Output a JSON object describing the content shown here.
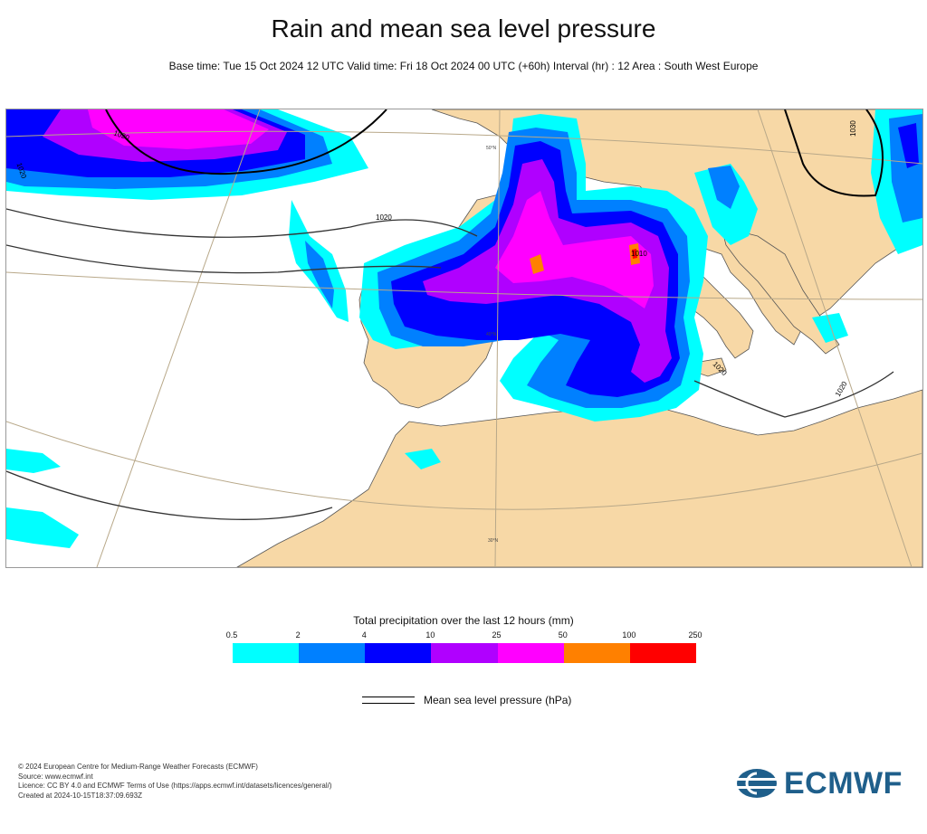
{
  "title": "Rain and mean sea level pressure",
  "subtitle": "Base time: Tue 15 Oct 2024 12 UTC Valid time: Fri 18 Oct 2024 00 UTC (+60h) Interval (hr) : 12 Area : South West Europe",
  "map": {
    "isobar_labels": [
      "1020",
      "1020",
      "1020",
      "1020",
      "1030",
      "1020",
      "1010"
    ],
    "grid_labels": [
      "50°N",
      "40°N",
      "30°N"
    ]
  },
  "legend": {
    "title": "Total precipitation over the last 12 hours (mm)",
    "ticks": [
      "0.5",
      "2",
      "4",
      "10",
      "25",
      "50",
      "100",
      "250"
    ],
    "colors": [
      "#00ffff",
      "#0080ff",
      "#0000ff",
      "#b000ff",
      "#ff00ff",
      "#ff8000",
      "#ff0000"
    ]
  },
  "pressure_legend": {
    "label": "Mean sea level pressure (hPa)"
  },
  "credits": [
    "© 2024 European Centre for Medium-Range Weather Forecasts (ECMWF)",
    "Source: www.ecmwf.int",
    "Licence: CC BY 4.0 and ECMWF Terms of Use (https://apps.ecmwf.int/datasets/licences/general/)",
    "Created at 2024-10-15T18:37:09.693Z"
  ],
  "logo": {
    "text": "ECMWF",
    "color": "#1f5f8b"
  }
}
